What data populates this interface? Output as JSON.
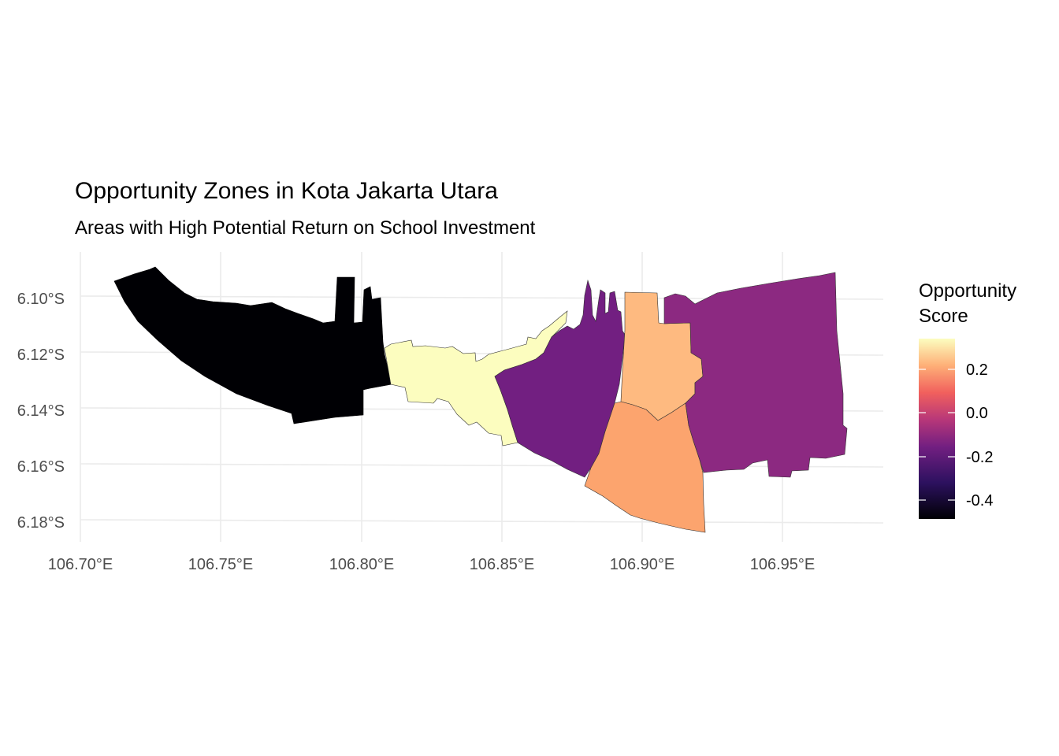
{
  "chart_data": {
    "type": "choropleth-map",
    "title": "Opportunity Zones in Kota Jakarta Utara",
    "subtitle": "Areas with High Potential Return on School Investment",
    "legend": {
      "title_lines": [
        "Opportunity",
        "Score"
      ],
      "ticks": [
        "0.2",
        "0.0",
        "-0.2",
        "-0.4"
      ],
      "tick_values": [
        0.2,
        0.0,
        -0.2,
        -0.4
      ],
      "range": [
        -0.48,
        0.35
      ],
      "colormap": "magma",
      "placement": "right"
    },
    "x_ticks": [
      "106.70°E",
      "106.75°E",
      "106.80°E",
      "106.85°E",
      "106.90°E",
      "106.95°E"
    ],
    "y_ticks": [
      "6.10°S",
      "6.12°S",
      "6.14°S",
      "6.16°S",
      "6.18°S"
    ],
    "xlim": [
      106.7,
      106.985
    ],
    "ylim": [
      -6.188,
      -6.087
    ],
    "grid": true,
    "regions": [
      {
        "score": -0.48,
        "color": "#000004"
      },
      {
        "score": 0.35,
        "color": "#FCFDBF"
      },
      {
        "score": -0.24,
        "color": "#721F81"
      },
      {
        "score": 0.2,
        "color": "#FEBA80"
      },
      {
        "score": 0.12,
        "color": "#FCA46E"
      },
      {
        "score": -0.2,
        "color": "#8C2981"
      }
    ]
  }
}
